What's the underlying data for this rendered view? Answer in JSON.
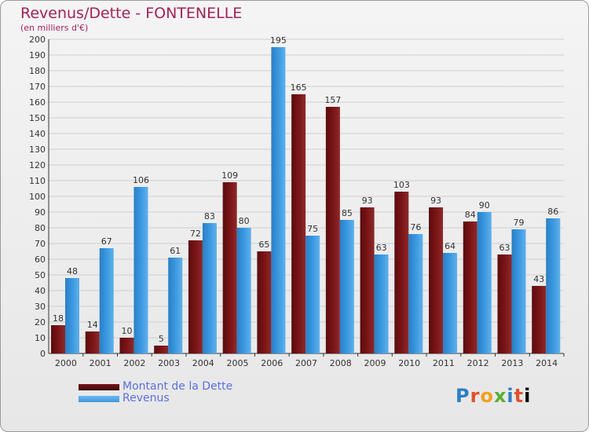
{
  "title": "Revenus/Dette - FONTENELLE",
  "subtitle": "(en milliers d'€)",
  "legend": {
    "debt_label": "Montant de la Dette",
    "revenue_label": "Revenus"
  },
  "logo": {
    "text": "Proxiti"
  },
  "colors": {
    "debt": "#7a1416",
    "revenue": "#3a98e0",
    "title": "#a2225a",
    "legend_text": "#5a6fe0"
  },
  "chart_data": {
    "type": "bar",
    "categories": [
      "2000",
      "2001",
      "2002",
      "2003",
      "2004",
      "2005",
      "2006",
      "2007",
      "2008",
      "2009",
      "2010",
      "2011",
      "2012",
      "2013",
      "2014"
    ],
    "series": [
      {
        "name": "Montant de la Dette",
        "values": [
          18,
          14,
          10,
          5,
          72,
          109,
          65,
          165,
          157,
          93,
          103,
          93,
          84,
          63,
          43
        ]
      },
      {
        "name": "Revenus",
        "values": [
          48,
          67,
          106,
          61,
          83,
          80,
          195,
          75,
          85,
          63,
          76,
          64,
          90,
          79,
          86
        ]
      }
    ],
    "yticks": [
      0,
      10,
      20,
      30,
      40,
      50,
      60,
      70,
      80,
      90,
      100,
      110,
      120,
      130,
      140,
      150,
      160,
      170,
      180,
      190,
      200
    ],
    "ylim": [
      0,
      200
    ],
    "grid": true,
    "legend_position": "bottom-left"
  }
}
